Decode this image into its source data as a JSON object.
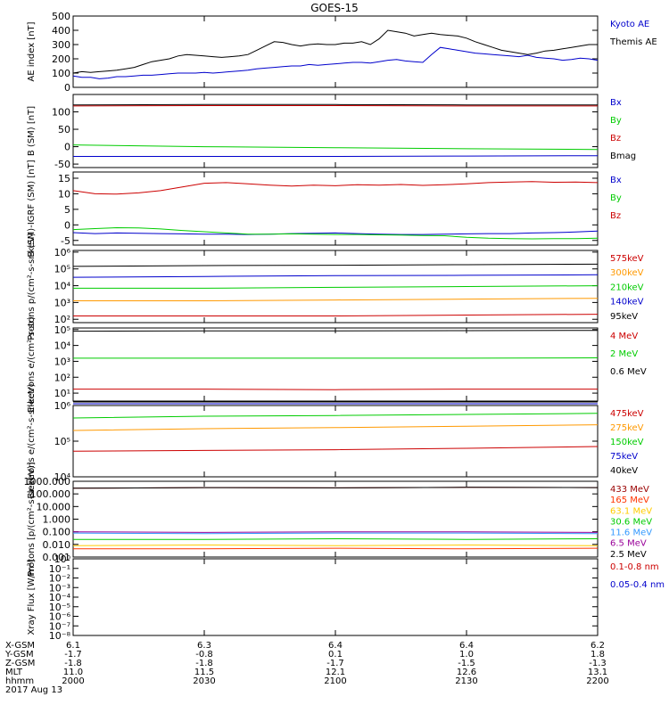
{
  "title": "GOES-15",
  "chart_data": [
    {
      "type": "line",
      "ylabel": "AE index [nT]",
      "yticks": [
        "0",
        "100",
        "200",
        "300",
        "400",
        "500"
      ],
      "ylim": [
        0,
        500
      ],
      "x": [
        0,
        2,
        4,
        6,
        8,
        10,
        12,
        14,
        16,
        18,
        20,
        22,
        24,
        26,
        28,
        30,
        32,
        34,
        36,
        38,
        40,
        42,
        44,
        46,
        48,
        50,
        52,
        54,
        56,
        58,
        60,
        62,
        64,
        66,
        68,
        70,
        72,
        74,
        76,
        78,
        80,
        82,
        84,
        86,
        88,
        90,
        92,
        94,
        96,
        98,
        100,
        102,
        104,
        106,
        108,
        110,
        112,
        114,
        116,
        118,
        120
      ],
      "series": [
        {
          "name": "Kyoto AE",
          "color": "#0000cc",
          "values": [
            80,
            70,
            70,
            60,
            65,
            75,
            75,
            80,
            85,
            85,
            90,
            95,
            100,
            100,
            100,
            105,
            100,
            105,
            110,
            115,
            120,
            130,
            135,
            140,
            145,
            150,
            150,
            160,
            155,
            160,
            165,
            170,
            175,
            175,
            170,
            180,
            190,
            195,
            185,
            180,
            175,
            230,
            280,
            270,
            260,
            250,
            240,
            235,
            230,
            225,
            220,
            215,
            225,
            210,
            205,
            200,
            190,
            195,
            205,
            200,
            190
          ]
        },
        {
          "name": "Themis AE",
          "color": "#000000",
          "values": [
            100,
            110,
            105,
            110,
            115,
            120,
            130,
            140,
            160,
            180,
            190,
            200,
            220,
            230,
            225,
            220,
            215,
            210,
            215,
            220,
            230,
            260,
            290,
            320,
            315,
            300,
            290,
            300,
            305,
            300,
            300,
            310,
            310,
            320,
            300,
            340,
            400,
            390,
            380,
            360,
            370,
            380,
            370,
            365,
            360,
            345,
            320,
            300,
            280,
            260,
            250,
            240,
            230,
            240,
            255,
            260,
            270,
            280,
            290,
            300,
            300
          ]
        }
      ],
      "legend": [
        "Kyoto AE",
        "Themis AE"
      ]
    },
    {
      "type": "line",
      "ylabel": "B (SM) [nT]",
      "yticks": [
        "-50",
        "0",
        "50",
        "100"
      ],
      "ylim": [
        -60,
        150
      ],
      "x": [
        0,
        30,
        60,
        90,
        120
      ],
      "series": [
        {
          "name": "Bx",
          "color": "#0000cc",
          "values": [
            -28,
            -28,
            -28,
            -27,
            -26
          ]
        },
        {
          "name": "By",
          "color": "#00cc00",
          "values": [
            5,
            0,
            -3,
            -6,
            -8
          ]
        },
        {
          "name": "Bz",
          "color": "#cc0000",
          "values": [
            117,
            118,
            118,
            117,
            117
          ]
        },
        {
          "name": "Bmag",
          "color": "#000000",
          "values": [
            120,
            121,
            121,
            120,
            120
          ]
        }
      ],
      "legend": [
        "Bx",
        "By",
        "Bz",
        "Bmag"
      ]
    },
    {
      "type": "line",
      "ylabel": "B (SM)-IGRF (SM) [nT]",
      "yticks": [
        "-5",
        "0",
        "5",
        "10",
        "15"
      ],
      "ylim": [
        -6.5,
        17
      ],
      "x": [
        0,
        5,
        10,
        15,
        20,
        25,
        30,
        35,
        40,
        45,
        50,
        55,
        60,
        65,
        70,
        75,
        80,
        85,
        90,
        95,
        100,
        105,
        110,
        115,
        120
      ],
      "series": [
        {
          "name": "Bx",
          "color": "#0000cc",
          "values": [
            -2.5,
            -2.8,
            -2.6,
            -2.7,
            -2.8,
            -2.9,
            -3.0,
            -3.0,
            -3.1,
            -3.0,
            -2.8,
            -2.7,
            -2.6,
            -2.8,
            -3.0,
            -3.1,
            -3.1,
            -3.0,
            -2.9,
            -2.8,
            -2.8,
            -2.6,
            -2.5,
            -2.3,
            -2.0
          ]
        },
        {
          "name": "By",
          "color": "#00cc00",
          "values": [
            -1.5,
            -1.2,
            -0.9,
            -1.0,
            -1.3,
            -1.8,
            -2.2,
            -2.6,
            -3.0,
            -3.0,
            -2.9,
            -3.0,
            -3.1,
            -3.1,
            -3.2,
            -3.3,
            -3.4,
            -3.5,
            -4.0,
            -4.3,
            -4.4,
            -4.5,
            -4.4,
            -4.4,
            -4.3
          ]
        },
        {
          "name": "Bz",
          "color": "#cc0000",
          "values": [
            11.0,
            10.0,
            9.9,
            10.3,
            11.0,
            12.2,
            13.4,
            13.6,
            13.2,
            12.8,
            12.5,
            12.8,
            12.6,
            12.9,
            12.8,
            13.0,
            12.7,
            12.9,
            13.2,
            13.6,
            13.8,
            13.9,
            13.7,
            13.8,
            13.6
          ]
        }
      ],
      "legend": [
        "Bx",
        "By",
        "Bz"
      ]
    },
    {
      "type": "line",
      "scale": "log",
      "ylabel": "Protons p/(cm²-s-sr-keV)",
      "yticks": [
        "10²",
        "10³",
        "10⁴",
        "10⁵",
        "10⁶"
      ],
      "ylim": [
        1.8,
        6.1
      ],
      "x": [
        0,
        30,
        60,
        90,
        120
      ],
      "series": [
        {
          "name": "575keV",
          "color": "#cc0000",
          "values": [
            2.2,
            2.2,
            2.2,
            2.25,
            2.3
          ]
        },
        {
          "name": "300keV",
          "color": "#ff9900",
          "values": [
            3.1,
            3.1,
            3.15,
            3.2,
            3.25
          ]
        },
        {
          "name": "210keV",
          "color": "#00cc00",
          "values": [
            3.85,
            3.85,
            3.9,
            3.95,
            4.0
          ]
        },
        {
          "name": "140keV",
          "color": "#0000cc",
          "values": [
            4.5,
            4.55,
            4.6,
            4.62,
            4.65
          ]
        },
        {
          "name": "95keV",
          "color": "#000000",
          "values": [
            5.15,
            5.2,
            5.22,
            5.25,
            5.28
          ]
        }
      ],
      "legend": [
        "575keV",
        "300keV",
        "210keV",
        "140keV",
        "95keV"
      ]
    },
    {
      "type": "line",
      "scale": "log",
      "ylabel": "Electrons e/(cm²-s-sr)",
      "yticks": [
        "10¹",
        "10²",
        "10³",
        "10⁴",
        "10⁵"
      ],
      "ylim": [
        0.5,
        5.1
      ],
      "x": [
        0,
        30,
        60,
        90,
        120
      ],
      "series": [
        {
          "name": "4 MeV",
          "color": "#cc0000",
          "values": [
            1.25,
            1.25,
            1.22,
            1.25,
            1.25
          ]
        },
        {
          "name": "2 MeV",
          "color": "#00cc00",
          "values": [
            3.2,
            3.2,
            3.2,
            3.2,
            3.22
          ]
        },
        {
          "name": "0.6 MeV",
          "color": "#000000",
          "values": [
            4.9,
            4.92,
            4.92,
            4.93,
            4.95
          ]
        }
      ],
      "legend": [
        "4 MeV",
        "2 MeV",
        "0.6 MeV"
      ]
    },
    {
      "type": "line",
      "scale": "log",
      "ylabel": "Electrons e/(cm²-s-sr-keV)",
      "yticks": [
        "10⁴",
        "10⁵",
        "10⁶"
      ],
      "ylim": [
        4.0,
        6.0
      ],
      "x": [
        0,
        30,
        60,
        90,
        120
      ],
      "series": [
        {
          "name": "475keV",
          "color": "#cc0000",
          "values": [
            4.72,
            4.74,
            4.76,
            4.8,
            4.85
          ]
        },
        {
          "name": "275keV",
          "color": "#ff9900",
          "values": [
            5.3,
            5.35,
            5.38,
            5.42,
            5.46
          ]
        },
        {
          "name": "150keV",
          "color": "#00cc00",
          "values": [
            5.65,
            5.7,
            5.72,
            5.75,
            5.78
          ]
        },
        {
          "name": "75keV",
          "color": "#0000cc",
          "values": [
            6.05,
            6.05,
            6.05,
            6.05,
            6.05
          ]
        },
        {
          "name": "40keV",
          "color": "#000000",
          "values": [
            6.1,
            6.1,
            6.1,
            6.1,
            6.1
          ]
        }
      ],
      "legend": [
        "475keV",
        "275keV",
        "150keV",
        "75keV",
        "40keV"
      ]
    },
    {
      "type": "line",
      "scale": "log",
      "ylabel": "Protons [p/(cm²-s-sr-keV)]",
      "yticks": [
        "0.001",
        "0.010",
        "0.100",
        "1.000",
        "10.000",
        "100.000",
        "1000.000"
      ],
      "ylim": [
        -3.0,
        3.0
      ],
      "x": [
        0,
        30,
        60,
        90,
        120
      ],
      "series": [
        {
          "name": "433 MeV",
          "color": "#990000",
          "values": [
            2.45,
            2.5,
            2.48,
            2.52,
            2.5
          ]
        },
        {
          "name": "165 MeV",
          "color": "#ff3300",
          "values": [
            -2.35,
            -2.35,
            -2.3,
            -2.35,
            -2.3
          ]
        },
        {
          "name": "63.1 MeV",
          "color": "#ffcc00",
          "values": [
            -2.1,
            -2.05,
            -2.1,
            -2.05,
            -2.1
          ]
        },
        {
          "name": "30.6 MeV",
          "color": "#00cc00",
          "values": [
            -1.6,
            -1.6,
            -1.55,
            -1.6,
            -1.55
          ]
        },
        {
          "name": "11.6 MeV",
          "color": "#3399ff",
          "values": [
            -1.1,
            -1.15,
            -1.1,
            -1.1,
            -1.15
          ]
        },
        {
          "name": "6.5 MeV",
          "color": "#990099",
          "values": [
            -1.0,
            -1.05,
            -1.0,
            -1.0,
            -1.05
          ]
        },
        {
          "name": "2.5 MeV",
          "color": "#000000",
          "values": [
            2.45,
            2.5,
            2.48,
            2.52,
            2.5
          ]
        }
      ],
      "legend": [
        "433 MeV",
        "165 MeV",
        "63.1 MeV",
        "30.6 MeV",
        "11.6 MeV",
        "6.5 MeV",
        "2.5 MeV"
      ]
    },
    {
      "type": "line",
      "scale": "log",
      "ylabel": "Xray Flux [W/m²]",
      "yticks": [
        "10⁻⁸",
        "10⁻⁷",
        "10⁻⁶",
        "10⁻⁵",
        "10⁻⁴",
        "10⁻³",
        "10⁻²",
        "10⁻¹",
        "10⁰"
      ],
      "ylim": [
        -8,
        0
      ],
      "series": [
        {
          "name": "0.1-0.8 nm",
          "color": "#cc0000",
          "values": []
        },
        {
          "name": "0.05-0.4 nm",
          "color": "#0000cc",
          "values": []
        }
      ],
      "legend": [
        "0.1-0.8 nm",
        "0.05-0.4 nm"
      ]
    }
  ],
  "footer": {
    "row_labels": [
      "X-GSM",
      "Y-GSM",
      "Z-GSM",
      "MLT",
      "hhmm",
      "2017 Aug 13"
    ],
    "columns": [
      {
        "x": "6.1",
        "y": "-1.7",
        "z": "-1.8",
        "mlt": "11.0",
        "hhmm": "2000"
      },
      {
        "x": "6.3",
        "y": "-0.8",
        "z": "-1.8",
        "mlt": "11.5",
        "hhmm": "2030"
      },
      {
        "x": "6.4",
        "y": "0.1",
        "z": "-1.7",
        "mlt": "12.1",
        "hhmm": "2100"
      },
      {
        "x": "6.4",
        "y": "1.0",
        "z": "-1.5",
        "mlt": "12.6",
        "hhmm": "2130"
      },
      {
        "x": "6.2",
        "y": "1.8",
        "z": "-1.3",
        "mlt": "13.1",
        "hhmm": "2200"
      }
    ]
  }
}
